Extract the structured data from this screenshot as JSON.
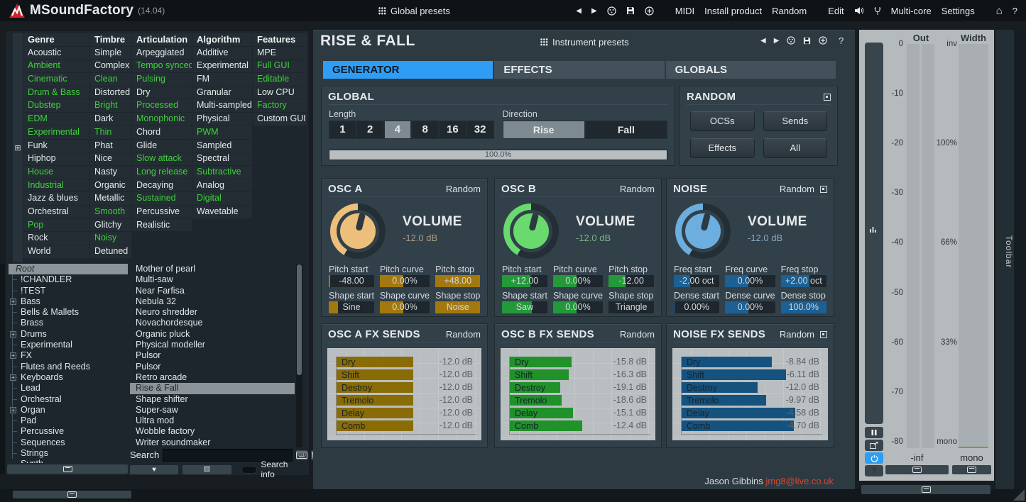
{
  "topbar": {
    "title": "MSoundFactory",
    "version": "(14.04)",
    "global_presets": "Global presets",
    "nav": {
      "midi": "MIDI",
      "install": "Install product",
      "random": "Random",
      "edit": "Edit",
      "multicore": "Multi-core",
      "settings": "Settings",
      "help": "?"
    }
  },
  "browser": {
    "filters": {
      "columns": [
        {
          "name": "Genre",
          "items": [
            [
              "Acoustic",
              0
            ],
            [
              "Ambient",
              1
            ],
            [
              "Cinematic",
              1
            ],
            [
              "Drum & Bass",
              1
            ],
            [
              "Dubstep",
              1
            ],
            [
              "EDM",
              1
            ],
            [
              "Experimental",
              1
            ],
            [
              "Funk",
              0
            ],
            [
              "Hiphop",
              0
            ],
            [
              "House",
              1
            ],
            [
              "Industrial",
              1
            ],
            [
              "Jazz & blues",
              0
            ],
            [
              "Orchestral",
              0
            ],
            [
              "Pop",
              1
            ],
            [
              "Rock",
              0
            ],
            [
              "World",
              0
            ]
          ]
        },
        {
          "name": "Timbre",
          "items": [
            [
              "Simple",
              0
            ],
            [
              "Complex",
              0
            ],
            [
              "Clean",
              1
            ],
            [
              "Distorted",
              0
            ],
            [
              "Bright",
              1
            ],
            [
              "Dark",
              0
            ],
            [
              "Thin",
              1
            ],
            [
              "Phat",
              0
            ],
            [
              "Nice",
              0
            ],
            [
              "Nasty",
              0
            ],
            [
              "Organic",
              0
            ],
            [
              "Metallic",
              0
            ],
            [
              "Smooth",
              1
            ],
            [
              "Glitchy",
              0
            ],
            [
              "Noisy",
              1
            ],
            [
              "Detuned",
              0
            ]
          ]
        },
        {
          "name": "Articulation",
          "items": [
            [
              "Arpeggiated",
              0
            ],
            [
              "Tempo synced",
              1
            ],
            [
              "Pulsing",
              1
            ],
            [
              "Dry",
              0
            ],
            [
              "Processed",
              1
            ],
            [
              "Monophonic",
              1
            ],
            [
              "Chord",
              0
            ],
            [
              "Glide",
              0
            ],
            [
              "Slow attack",
              1
            ],
            [
              "Long release",
              1
            ],
            [
              "Decaying",
              0
            ],
            [
              "Sustained",
              1
            ],
            [
              "Percussive",
              0
            ],
            [
              "Realistic",
              0
            ]
          ]
        },
        {
          "name": "Algorithm",
          "items": [
            [
              "Additive",
              0
            ],
            [
              "Experimental",
              0
            ],
            [
              "FM",
              0
            ],
            [
              "Granular",
              0
            ],
            [
              "Multi-sampled",
              0
            ],
            [
              "Physical",
              0
            ],
            [
              "PWM",
              1
            ],
            [
              "Sampled",
              0
            ],
            [
              "Spectral",
              0
            ],
            [
              "Subtractive",
              1
            ],
            [
              "Analog",
              0
            ],
            [
              "Digital",
              1
            ],
            [
              "Wavetable",
              0
            ]
          ]
        },
        {
          "name": "Features",
          "items": [
            [
              "MPE",
              0
            ],
            [
              "Full GUI",
              1
            ],
            [
              "Editable",
              1
            ],
            [
              "Low CPU",
              0
            ],
            [
              "Factory",
              1
            ],
            [
              "Custom GUI",
              0
            ]
          ]
        }
      ]
    },
    "tree": [
      [
        "Root",
        "root"
      ],
      [
        "!CHANDLER",
        "leaf"
      ],
      [
        "!TEST",
        "leaf"
      ],
      [
        "Bass",
        "exp"
      ],
      [
        "Bells & Mallets",
        "leaf"
      ],
      [
        "Brass",
        "leaf"
      ],
      [
        "Drums",
        "exp"
      ],
      [
        "Experimental",
        "leaf"
      ],
      [
        "FX",
        "exp"
      ],
      [
        "Flutes and Reeds",
        "leaf"
      ],
      [
        "Keyboards",
        "exp"
      ],
      [
        "Lead",
        "leaf"
      ],
      [
        "Orchestral",
        "leaf"
      ],
      [
        "Organ",
        "exp"
      ],
      [
        "Pad",
        "leaf"
      ],
      [
        "Percussive",
        "leaf"
      ],
      [
        "Sequences",
        "leaf"
      ],
      [
        "Strings",
        "leaf"
      ],
      [
        "Synth",
        "leaf"
      ]
    ],
    "presets": [
      "Mother of pearl",
      "Multi-saw",
      "Near Farfisa",
      "Nebula 32",
      "Neuro shredder",
      "Novachordesque",
      "Organic pluck",
      "Physical modeller",
      "Pulsor",
      "Pulsor",
      "Retro arcade",
      "Rise & Fall",
      "Shape shifter",
      "Super-saw",
      "Ultra mod",
      "Wobble factory",
      "Writer soundmaker"
    ],
    "selected_preset": "Rise & Fall",
    "search_label": "Search",
    "search_value": "",
    "search_info": "Search info"
  },
  "instrument": {
    "title": "RISE & FALL",
    "presets_label": "Instrument presets",
    "tabs": [
      {
        "label": "GENERATOR",
        "active": true
      },
      {
        "label": "EFFECTS",
        "active": false
      },
      {
        "label": "GLOBALS",
        "active": false
      }
    ],
    "global": {
      "title": "GLOBAL",
      "length_label": "Length",
      "length_options": [
        "1",
        "2",
        "4",
        "8",
        "16",
        "32"
      ],
      "length_selected": "4",
      "direction_label": "Direction",
      "direction_options": [
        "Rise",
        "Fall"
      ],
      "direction_selected": "Rise",
      "slider": "100.0%"
    },
    "random": {
      "title": "RANDOM",
      "buttons": [
        "OCSs",
        "Sends",
        "Effects",
        "All"
      ]
    },
    "oscillators": [
      {
        "title": "OSC A",
        "random": "Random",
        "detach": false,
        "volume_label": "VOLUME",
        "volume": "-12.0 dB",
        "accent": "#ecc07c",
        "fill": "#a3790e",
        "value_text": "#a79c87",
        "params": [
          {
            "label": "Pitch start",
            "value": "-48.00",
            "pct": 3
          },
          {
            "label": "Pitch curve",
            "value": "0.00%",
            "pct": 47
          },
          {
            "label": "Pitch stop",
            "value": "+48.00",
            "pct": 100
          },
          {
            "label": "Shape start",
            "value": "Sine",
            "pct": 20
          },
          {
            "label": "Shape curve",
            "value": "0.00%",
            "pct": 47
          },
          {
            "label": "Shape stop",
            "value": "Noise",
            "pct": 100
          }
        ]
      },
      {
        "title": "OSC B",
        "random": "Random",
        "detach": false,
        "volume_label": "VOLUME",
        "volume": "-12.0 dB",
        "accent": "#68da6e",
        "fill": "#24993a",
        "value_text": "#7bb286",
        "params": [
          {
            "label": "Pitch start",
            "value": "+12.00",
            "pct": 62
          },
          {
            "label": "Pitch curve",
            "value": "0.00%",
            "pct": 47
          },
          {
            "label": "Pitch stop",
            "value": "-12.00",
            "pct": 38
          },
          {
            "label": "Shape start",
            "value": "Saw",
            "pct": 65
          },
          {
            "label": "Shape curve",
            "value": "0.00%",
            "pct": 47
          },
          {
            "label": "Shape stop",
            "value": "Triangle",
            "pct": 0
          }
        ]
      },
      {
        "title": "NOISE",
        "random": "Random",
        "detach": true,
        "volume_label": "VOLUME",
        "volume": "-12.0 dB",
        "accent": "#6caede",
        "fill": "#1c6094",
        "value_text": "#8ca9c0",
        "params": [
          {
            "label": "Freq start",
            "value": "-2.00 oct",
            "pct": 36
          },
          {
            "label": "Freq curve",
            "value": "0.00%",
            "pct": 47
          },
          {
            "label": "Freq stop",
            "value": "+2.00 oct",
            "pct": 63
          },
          {
            "label": "Dense start",
            "value": "0.00%",
            "pct": 2
          },
          {
            "label": "Dense curve",
            "value": "0.00%",
            "pct": 47
          },
          {
            "label": "Dense stop",
            "value": "100.0%",
            "pct": 100
          }
        ]
      }
    ],
    "fx_sends": [
      {
        "title": "OSC A FX SENDS",
        "random": "Random",
        "detach": false,
        "bar_color": "#8a6c06",
        "bars": [
          {
            "label": "Dry",
            "value": "-12.0 dB",
            "pct": 55
          },
          {
            "label": "Shift",
            "value": "-12.0 dB",
            "pct": 55
          },
          {
            "label": "Destroy",
            "value": "-12.0 dB",
            "pct": 55
          },
          {
            "label": "Tremolo",
            "value": "-12.0 dB",
            "pct": 55
          },
          {
            "label": "Delay",
            "value": "-12.0 dB",
            "pct": 55
          },
          {
            "label": "Comb",
            "value": "-12.0 dB",
            "pct": 55
          }
        ]
      },
      {
        "title": "OSC B FX SENDS",
        "random": "Random",
        "detach": false,
        "bar_color": "#21912a",
        "bars": [
          {
            "label": "Dry",
            "value": "-15.8 dB",
            "pct": 44
          },
          {
            "label": "Shift",
            "value": "-16.3 dB",
            "pct": 42
          },
          {
            "label": "Destroy",
            "value": "-19.1 dB",
            "pct": 36
          },
          {
            "label": "Tremolo",
            "value": "-18.6 dB",
            "pct": 37
          },
          {
            "label": "Delay",
            "value": "-15.1 dB",
            "pct": 45
          },
          {
            "label": "Comb",
            "value": "-12.4 dB",
            "pct": 52
          }
        ]
      },
      {
        "title": "NOISE FX SENDS",
        "random": "Random",
        "detach": true,
        "bar_color": "#16527e",
        "bars": [
          {
            "label": "Dry",
            "value": "-8.84 dB",
            "pct": 64
          },
          {
            "label": "Shift",
            "value": "-6.11 dB",
            "pct": 74
          },
          {
            "label": "Destroy",
            "value": "-12.0 dB",
            "pct": 54
          },
          {
            "label": "Tremolo",
            "value": "-9.97 dB",
            "pct": 60
          },
          {
            "label": "Delay",
            "value": "-4.58 dB",
            "pct": 81
          },
          {
            "label": "Comb",
            "value": "-4.70 dB",
            "pct": 80
          }
        ]
      }
    ]
  },
  "meter": {
    "out_label": "Out",
    "width_label": "Width",
    "db_ticks": [
      "0",
      "-10",
      "-20",
      "-30",
      "-40",
      "-50",
      "-60",
      "-70",
      "-80"
    ],
    "width_ticks": [
      "inv",
      "100%",
      "66%",
      "33%",
      "mono"
    ],
    "out_value": "-inf",
    "width_value": "mono"
  },
  "toolbar_label": "Toolbar",
  "credit": {
    "name": "Jason Gibbins",
    "email": "jmg8@live.co.uk"
  },
  "colors": {
    "accent_blue": "#2f9df4",
    "tag_green": "#3fd23c",
    "osc_a": "#ecc07c",
    "osc_b": "#68da6e",
    "noise": "#6caede",
    "email_red": "#d8442c"
  }
}
